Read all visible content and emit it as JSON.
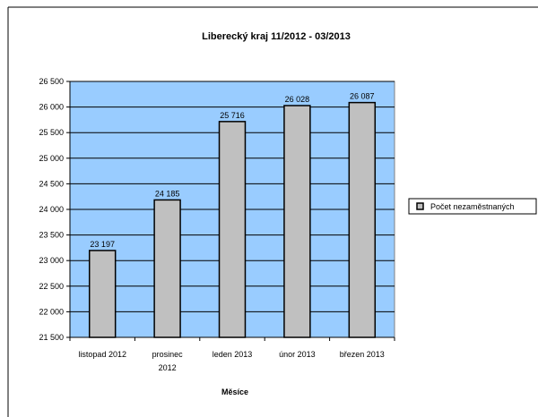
{
  "chart_data": {
    "type": "bar",
    "title": "Liberecký kraj 11/2012 - 03/2013",
    "xlabel": "Měsíce",
    "ylabel": "",
    "categories": [
      [
        "listopad 2012"
      ],
      [
        "prosinec",
        "2012"
      ],
      [
        "leden 2013"
      ],
      [
        "únor 2013"
      ],
      [
        "březen 2013"
      ]
    ],
    "series": [
      {
        "name": "Počet nezaměstnaných",
        "values": [
          23197,
          24185,
          25716,
          26028,
          26087
        ],
        "labels": [
          "23 197",
          "24 185",
          "25 716",
          "26 028",
          "26 087"
        ]
      }
    ],
    "ylim": [
      21500,
      26500
    ],
    "yticks": [
      21500,
      22000,
      22500,
      23000,
      23500,
      24000,
      24500,
      25000,
      25500,
      26000,
      26500
    ],
    "ytick_labels": [
      "21 500",
      "22 000",
      "22 500",
      "23 000",
      "23 500",
      "24 000",
      "24 500",
      "25 000",
      "25 500",
      "26 000",
      "26 500"
    ],
    "grid": true,
    "legend_position": "right",
    "colors": {
      "plot_background": "#99ccff",
      "bar_fill": "#c0c0c0",
      "bar_stroke": "#000000",
      "gridline": "#000000"
    }
  }
}
